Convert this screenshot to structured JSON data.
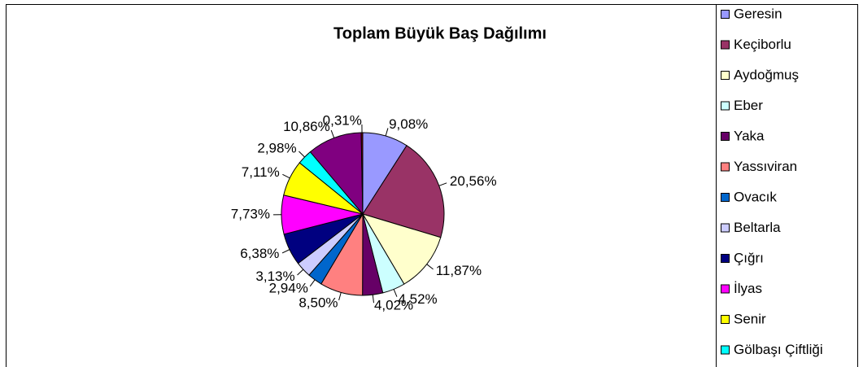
{
  "chart_data": {
    "type": "pie",
    "title": "Toplam Büyük Baş Dağılımı",
    "categories": [
      "Geresin",
      "Keçiborlu",
      "Aydoğmuş",
      "Eber",
      "Yaka",
      "Yassıviran",
      "Ovacık",
      "Beltarla",
      "Çığrı",
      "İlyas",
      "Senir",
      "Gölbaşı Çiftliği",
      null,
      null
    ],
    "values": [
      9.08,
      20.56,
      11.87,
      4.52,
      4.02,
      8.5,
      2.94,
      3.13,
      6.38,
      7.73,
      7.11,
      2.98,
      10.86,
      0.31
    ],
    "value_labels": [
      "9,08%",
      "20,56%",
      "11,87%",
      "4,52%",
      "4,02%",
      "8,50%",
      "2,94%",
      "3,13%",
      "6,38%",
      "7,73%",
      "7,11%",
      "2,98%",
      "10,86%",
      "0,31%"
    ],
    "colors": [
      "#9999ff",
      "#993366",
      "#ffffcc",
      "#ccffff",
      "#660066",
      "#ff8080",
      "#0066cc",
      "#ccccff",
      "#000080",
      "#ff00ff",
      "#ffff00",
      "#00ffff",
      "#800080",
      "#800000"
    ],
    "legend": "right"
  }
}
